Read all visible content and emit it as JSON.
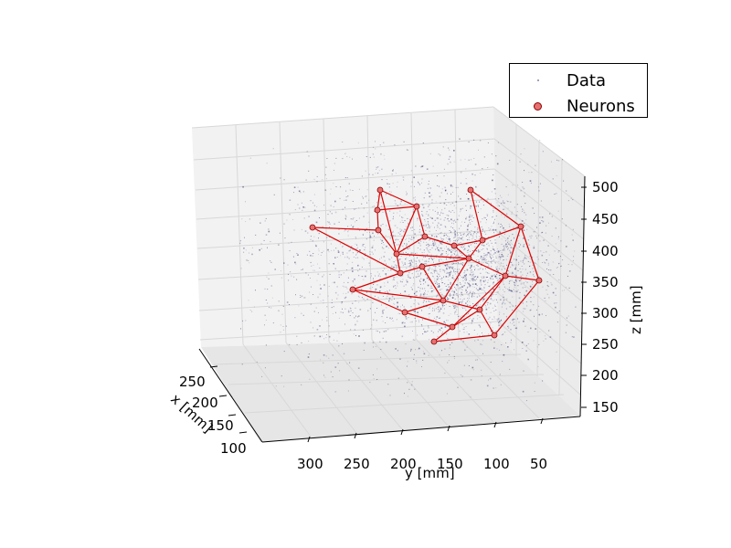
{
  "chart_data": {
    "type": "scatter3d",
    "xlabel": "x [mm]",
    "ylabel": "y [mm]",
    "zlabel": "z [mm]",
    "x_ticks": [
      "100",
      "150",
      "200",
      "250"
    ],
    "y_ticks": [
      "300",
      "250",
      "200",
      "150",
      "100",
      "50"
    ],
    "z_ticks": [
      "150",
      "200",
      "250",
      "300",
      "350",
      "400",
      "450",
      "500"
    ],
    "xlim": [
      90,
      290
    ],
    "ylim": [
      20,
      340
    ],
    "zlim": [
      140,
      510
    ],
    "grid": true,
    "legend": {
      "placement": "top-right",
      "entries": [
        {
          "label": "Data",
          "style": "small-dots"
        },
        {
          "label": "Neurons",
          "style": "red-circle"
        }
      ]
    },
    "series": [
      {
        "name": "Data",
        "color": "#1a1a5e",
        "description_count": 3000
      },
      {
        "name": "Neurons",
        "color": "#e06060",
        "line_color": "#dd0000"
      }
    ]
  },
  "colors": {
    "data_points": "#14145a",
    "neuron_fill": "#e87070",
    "neuron_edge": "#8b0000",
    "neuron_lines": "#dd0000",
    "pane": "#f2f2f2",
    "grid": "#dddddd"
  }
}
